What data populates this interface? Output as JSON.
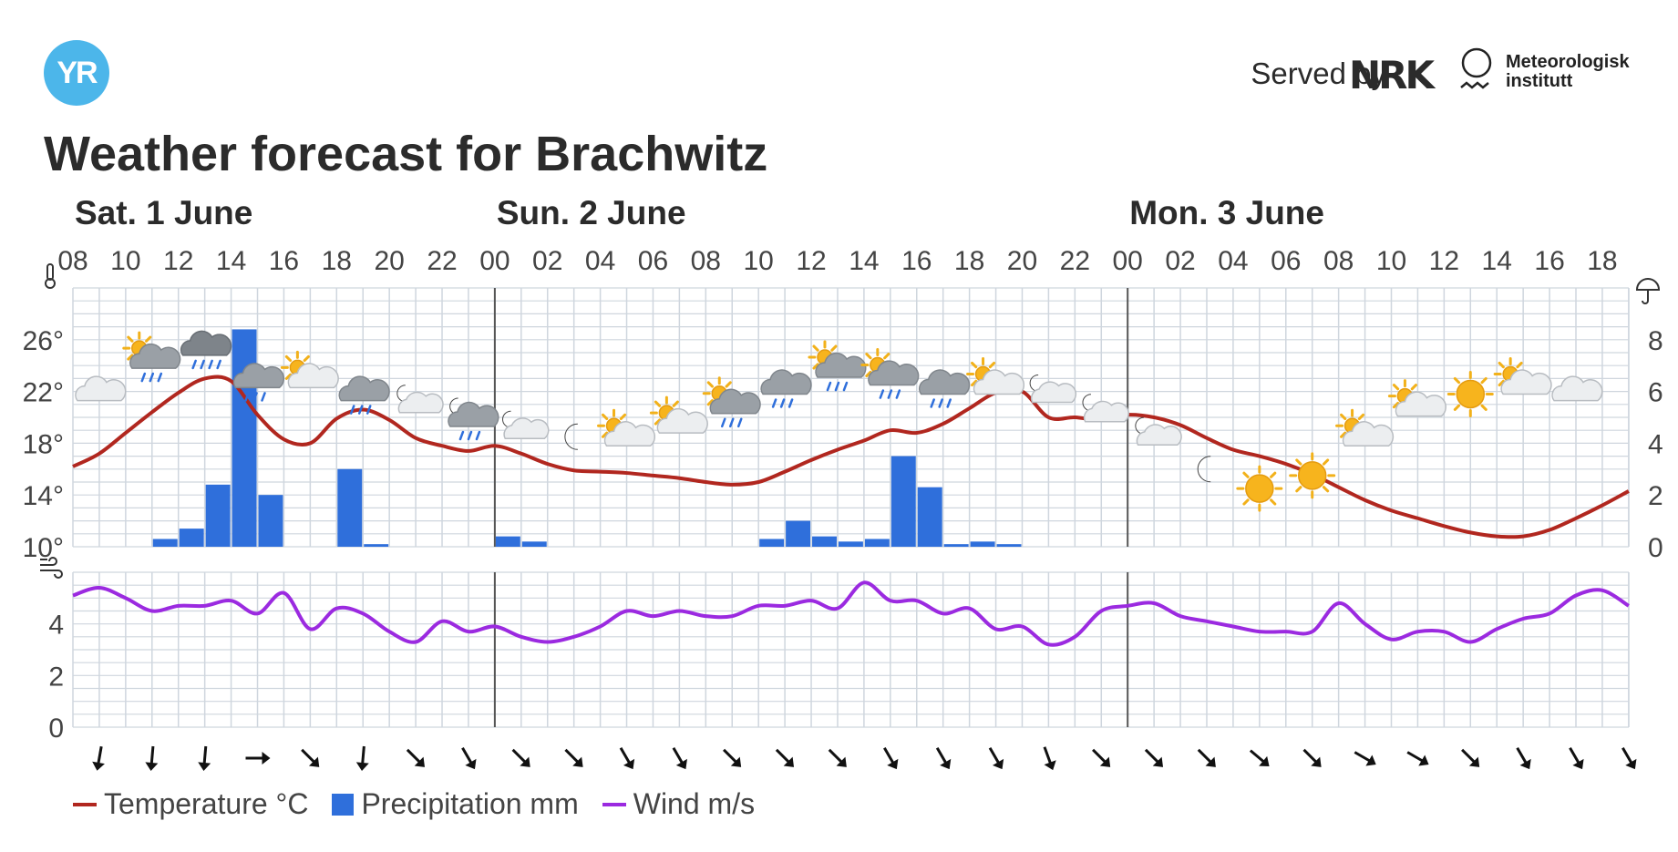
{
  "header": {
    "logo_text": "YR",
    "served_by": "Served by",
    "nrk_text": "NRK",
    "met_line1": "Meteorologisk",
    "met_line2": "institutt",
    "title": "Weather forecast for Brachwitz"
  },
  "colors": {
    "temperature": "#b1271f",
    "precipitation": "#2f6fdb",
    "wind": "#9b2ae0",
    "grid": "#cfd6de",
    "day_divider": "#555555",
    "logo": "#4cb6ea"
  },
  "legend": [
    {
      "label": "Temperature °C",
      "kind": "line",
      "color": "#b1271f"
    },
    {
      "label": "Precipitation mm",
      "kind": "box",
      "color": "#2f6fdb"
    },
    {
      "label": "Wind m/s",
      "kind": "line",
      "color": "#9b2ae0"
    }
  ],
  "chart_data": {
    "type": "line",
    "grid": true,
    "days": [
      {
        "label": "Sat. 1 June",
        "start_hour": 8
      },
      {
        "label": "Sun. 2 June",
        "start_hour": 24
      },
      {
        "label": "Mon. 3 June",
        "start_hour": 48
      }
    ],
    "hour_ticks": [
      "08",
      "10",
      "12",
      "14",
      "16",
      "18",
      "20",
      "22",
      "00",
      "02",
      "04",
      "06",
      "08",
      "10",
      "12",
      "14",
      "16",
      "18",
      "20",
      "22",
      "00",
      "02",
      "04",
      "06",
      "08",
      "10",
      "12",
      "14",
      "16",
      "18"
    ],
    "x_range_hours": [
      8,
      67
    ],
    "temperature": {
      "name": "Temperature °C",
      "ylim": [
        10,
        30
      ],
      "y_ticks": [
        "10°",
        "14°",
        "18°",
        "22°",
        "26°"
      ],
      "y_tick_values": [
        10,
        14,
        18,
        22,
        26
      ],
      "hours": [
        8,
        9,
        10,
        11,
        12,
        13,
        14,
        15,
        16,
        17,
        18,
        19,
        20,
        21,
        22,
        23,
        24,
        25,
        26,
        27,
        28,
        29,
        30,
        31,
        32,
        33,
        34,
        35,
        36,
        37,
        38,
        39,
        40,
        41,
        42,
        43,
        44,
        45,
        46,
        47,
        48,
        49,
        50,
        51,
        52,
        53,
        54,
        55,
        56,
        57,
        58,
        59,
        60,
        61,
        62,
        63,
        64,
        65,
        66,
        67
      ],
      "values": [
        16.2,
        17.2,
        18.8,
        20.4,
        21.9,
        23.0,
        22.8,
        20.2,
        18.3,
        18.0,
        19.9,
        20.6,
        19.8,
        18.4,
        17.8,
        17.4,
        17.8,
        17.2,
        16.4,
        15.9,
        15.8,
        15.7,
        15.5,
        15.3,
        15.0,
        14.8,
        15.0,
        15.8,
        16.7,
        17.5,
        18.2,
        19.0,
        18.8,
        19.5,
        20.7,
        21.9,
        22.0,
        20.0,
        20.0,
        19.8,
        20.2,
        20.0,
        19.4,
        18.4,
        17.5,
        17.0,
        16.4,
        15.6,
        14.6,
        13.6,
        12.8,
        12.2,
        11.6,
        11.1,
        10.8,
        10.8,
        11.3,
        12.2,
        13.2,
        14.3
      ]
    },
    "precipitation": {
      "name": "Precipitation mm",
      "ylim": [
        0,
        10
      ],
      "y_ticks": [
        "0",
        "2",
        "4",
        "6",
        "8"
      ],
      "y_tick_values": [
        0,
        2,
        4,
        6,
        8
      ],
      "bars": [
        {
          "hour": 11,
          "value": 0.3
        },
        {
          "hour": 12,
          "value": 0.7
        },
        {
          "hour": 13,
          "value": 2.4
        },
        {
          "hour": 14,
          "value": 8.4
        },
        {
          "hour": 15,
          "value": 2.0
        },
        {
          "hour": 18,
          "value": 3.0
        },
        {
          "hour": 19,
          "value": 0.1
        },
        {
          "hour": 24,
          "value": 0.4
        },
        {
          "hour": 25,
          "value": 0.2
        },
        {
          "hour": 34,
          "value": 0.3
        },
        {
          "hour": 35,
          "value": 1.0
        },
        {
          "hour": 36,
          "value": 0.4
        },
        {
          "hour": 37,
          "value": 0.2
        },
        {
          "hour": 38,
          "value": 0.3
        },
        {
          "hour": 39,
          "value": 3.5
        },
        {
          "hour": 40,
          "value": 2.3
        },
        {
          "hour": 41,
          "value": 0.1
        },
        {
          "hour": 42,
          "value": 0.2
        },
        {
          "hour": 43,
          "value": 0.1
        }
      ]
    },
    "wind": {
      "name": "Wind m/s",
      "ylim": [
        0,
        6
      ],
      "y_ticks": [
        "0",
        "2",
        "4"
      ],
      "y_tick_values": [
        0,
        2,
        4
      ],
      "hours": [
        8,
        9,
        10,
        11,
        12,
        13,
        14,
        15,
        16,
        17,
        18,
        19,
        20,
        21,
        22,
        23,
        24,
        25,
        26,
        27,
        28,
        29,
        30,
        31,
        32,
        33,
        34,
        35,
        36,
        37,
        38,
        39,
        40,
        41,
        42,
        43,
        44,
        45,
        46,
        47,
        48,
        49,
        50,
        51,
        52,
        53,
        54,
        55,
        56,
        57,
        58,
        59,
        60,
        61,
        62,
        63,
        64,
        65,
        66,
        67
      ],
      "values": [
        5.1,
        5.4,
        5.0,
        4.5,
        4.7,
        4.7,
        4.9,
        4.4,
        5.2,
        3.8,
        4.6,
        4.4,
        3.7,
        3.3,
        4.1,
        3.7,
        3.9,
        3.5,
        3.3,
        3.5,
        3.9,
        4.5,
        4.3,
        4.5,
        4.3,
        4.3,
        4.7,
        4.7,
        4.9,
        4.6,
        5.6,
        4.9,
        4.9,
        4.4,
        4.6,
        3.8,
        3.9,
        3.2,
        3.5,
        4.5,
        4.7,
        4.8,
        4.3,
        4.1,
        3.9,
        3.7,
        3.7,
        3.7,
        4.8,
        4.0,
        3.4,
        3.7,
        3.7,
        3.3,
        3.8,
        4.2,
        4.4,
        5.1,
        5.3,
        4.7
      ]
    },
    "weather_symbols": [
      {
        "hour": 9,
        "icon": "cloud-icon",
        "temp_anchor": 22.0
      },
      {
        "hour": 11,
        "icon": "partly-sunny-rain-icon",
        "temp_anchor": 24.5
      },
      {
        "hour": 13,
        "icon": "heavy-rain-cloud-icon",
        "temp_anchor": 25.5
      },
      {
        "hour": 15,
        "icon": "rain-cloud-icon",
        "temp_anchor": 23.0
      },
      {
        "hour": 17,
        "icon": "partly-sunny-icon",
        "temp_anchor": 23.0
      },
      {
        "hour": 19,
        "icon": "rain-cloud-icon",
        "temp_anchor": 22.0
      },
      {
        "hour": 21,
        "icon": "partly-night-icon",
        "temp_anchor": 21.0
      },
      {
        "hour": 23,
        "icon": "night-rain-cloud-icon",
        "temp_anchor": 20.0
      },
      {
        "hour": 25,
        "icon": "partly-night-icon",
        "temp_anchor": 19.0
      },
      {
        "hour": 27,
        "icon": "moon-icon",
        "temp_anchor": 18.5
      },
      {
        "hour": 29,
        "icon": "partly-sunny-icon",
        "temp_anchor": 18.5
      },
      {
        "hour": 31,
        "icon": "partly-sunny-icon",
        "temp_anchor": 19.5
      },
      {
        "hour": 33,
        "icon": "partly-sunny-rain-icon",
        "temp_anchor": 21.0
      },
      {
        "hour": 35,
        "icon": "rain-cloud-icon",
        "temp_anchor": 22.5
      },
      {
        "hour": 37,
        "icon": "partly-sunny-rain-icon",
        "temp_anchor": 23.8
      },
      {
        "hour": 39,
        "icon": "partly-sunny-rain-icon",
        "temp_anchor": 23.2
      },
      {
        "hour": 41,
        "icon": "rain-cloud-icon",
        "temp_anchor": 22.5
      },
      {
        "hour": 43,
        "icon": "partly-sunny-icon",
        "temp_anchor": 22.5
      },
      {
        "hour": 45,
        "icon": "partly-night-icon",
        "temp_anchor": 21.8
      },
      {
        "hour": 47,
        "icon": "partly-night-icon",
        "temp_anchor": 20.3
      },
      {
        "hour": 49,
        "icon": "partly-night-icon",
        "temp_anchor": 18.5
      },
      {
        "hour": 51,
        "icon": "moon-icon",
        "temp_anchor": 16.0
      },
      {
        "hour": 53,
        "icon": "sun-icon",
        "temp_anchor": 14.5
      },
      {
        "hour": 55,
        "icon": "sun-icon",
        "temp_anchor": 15.5
      },
      {
        "hour": 57,
        "icon": "partly-sunny-icon",
        "temp_anchor": 18.5
      },
      {
        "hour": 59,
        "icon": "partly-sunny-icon",
        "temp_anchor": 20.8
      },
      {
        "hour": 61,
        "icon": "sun-icon",
        "temp_anchor": 21.8
      },
      {
        "hour": 63,
        "icon": "partly-sunny-icon",
        "temp_anchor": 22.5
      },
      {
        "hour": 65,
        "icon": "cloud-icon",
        "temp_anchor": 22.0
      }
    ],
    "wind_directions": [
      {
        "hour": 9,
        "dir_deg": 10
      },
      {
        "hour": 11,
        "dir_deg": 5
      },
      {
        "hour": 13,
        "dir_deg": 5
      },
      {
        "hour": 15,
        "dir_deg": 270
      },
      {
        "hour": 17,
        "dir_deg": 315
      },
      {
        "hour": 19,
        "dir_deg": 5
      },
      {
        "hour": 21,
        "dir_deg": 315
      },
      {
        "hour": 23,
        "dir_deg": 330
      },
      {
        "hour": 25,
        "dir_deg": 315
      },
      {
        "hour": 27,
        "dir_deg": 315
      },
      {
        "hour": 29,
        "dir_deg": 330
      },
      {
        "hour": 31,
        "dir_deg": 330
      },
      {
        "hour": 33,
        "dir_deg": 315
      },
      {
        "hour": 35,
        "dir_deg": 315
      },
      {
        "hour": 37,
        "dir_deg": 315
      },
      {
        "hour": 39,
        "dir_deg": 330
      },
      {
        "hour": 41,
        "dir_deg": 330
      },
      {
        "hour": 43,
        "dir_deg": 330
      },
      {
        "hour": 45,
        "dir_deg": 340
      },
      {
        "hour": 47,
        "dir_deg": 315
      },
      {
        "hour": 49,
        "dir_deg": 315
      },
      {
        "hour": 51,
        "dir_deg": 315
      },
      {
        "hour": 53,
        "dir_deg": 310
      },
      {
        "hour": 55,
        "dir_deg": 315
      },
      {
        "hour": 57,
        "dir_deg": 300
      },
      {
        "hour": 59,
        "dir_deg": 300
      },
      {
        "hour": 61,
        "dir_deg": 315
      },
      {
        "hour": 63,
        "dir_deg": 330
      },
      {
        "hour": 65,
        "dir_deg": 330
      },
      {
        "hour": 67,
        "dir_deg": 330
      }
    ]
  }
}
